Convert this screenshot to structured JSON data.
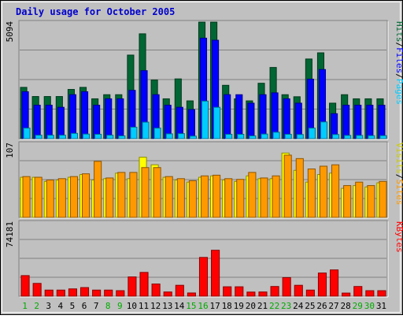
{
  "chart_data": {
    "type": "bar",
    "title": "Daily usage for October 2005",
    "categories": [
      "1",
      "2",
      "3",
      "4",
      "5",
      "6",
      "7",
      "8",
      "9",
      "10",
      "11",
      "12",
      "13",
      "14",
      "15",
      "16",
      "17",
      "18",
      "19",
      "20",
      "21",
      "22",
      "23",
      "24",
      "25",
      "26",
      "27",
      "28",
      "29",
      "30",
      "31"
    ],
    "weekend_days": [
      "1",
      "2",
      "8",
      "9",
      "15",
      "16",
      "22",
      "23",
      "29",
      "30"
    ],
    "panels": [
      {
        "id": "hits",
        "max_label": "5094",
        "ylim": [
          0,
          5094
        ],
        "legend": [
          "Pages",
          "Files",
          "Hits"
        ],
        "series": [
          {
            "name": "Hits",
            "color": "#006633",
            "values": [
              2240,
              1840,
              1840,
              1840,
              2150,
              2240,
              1740,
              1920,
              1920,
              3650,
              4580,
              2560,
              1740,
              2610,
              1650,
              5090,
              5090,
              2330,
              1740,
              1650,
              2420,
              3110,
              1920,
              1830,
              3480,
              3750,
              1550,
              1920,
              1740,
              1740,
              1740
            ]
          },
          {
            "name": "Files",
            "color": "#0000ff",
            "values": [
              2050,
              1460,
              1460,
              1370,
              1920,
              2050,
              1460,
              1740,
              1740,
              2110,
              2970,
              1920,
              1460,
              1370,
              1270,
              4390,
              4300,
              1920,
              1920,
              1550,
              1920,
              2000,
              1740,
              1550,
              2600,
              3020,
              1090,
              1460,
              1460,
              1460,
              1460
            ]
          },
          {
            "name": "Pages",
            "color": "#00ccff",
            "values": [
              460,
              150,
              150,
              150,
              230,
              200,
              190,
              150,
              120,
              500,
              720,
              460,
              210,
              220,
              110,
              1640,
              1370,
              190,
              190,
              120,
              200,
              280,
              190,
              180,
              460,
              730,
              180,
              140,
              140,
              130,
              130
            ]
          }
        ]
      },
      {
        "id": "visits",
        "max_label": "107",
        "ylim": [
          0,
          107
        ],
        "legend": [
          "Sites",
          "Visits"
        ],
        "series": [
          {
            "name": "Visits",
            "color": "#ffff00",
            "values": [
              58,
              58,
              52,
              54,
              58,
              62,
              54,
              56,
              64,
              56,
              87,
              76,
              58,
              54,
              51,
              58,
              60,
              54,
              52,
              60,
              56,
              56,
              93,
              68,
              51,
              62,
              64,
              42,
              46,
              44,
              50
            ]
          },
          {
            "name": "Sites",
            "color": "#ff9900",
            "values": [
              59,
              58,
              54,
              56,
              59,
              63,
              81,
              57,
              65,
              65,
              72,
              72,
              59,
              56,
              53,
              60,
              61,
              56,
              55,
              65,
              57,
              60,
              90,
              85,
              70,
              74,
              76,
              46,
              51,
              46,
              52
            ]
          }
        ]
      },
      {
        "id": "kbytes",
        "max_label": "74181",
        "ylim": [
          0,
          74181
        ],
        "legend": [
          "KBytes"
        ],
        "series": [
          {
            "name": "KBytes",
            "color": "#ff0000",
            "values": [
              20600,
              12800,
              6100,
              6100,
              7300,
              8600,
              6100,
              6100,
              5500,
              19300,
              23800,
              12200,
              4200,
              10900,
              3200,
              38800,
              46000,
              9400,
              9400,
              4100,
              4200,
              9700,
              18600,
              10900,
              6100,
              23200,
              26300,
              3100,
              9700,
              5500,
              5500
            ]
          }
        ]
      }
    ]
  }
}
